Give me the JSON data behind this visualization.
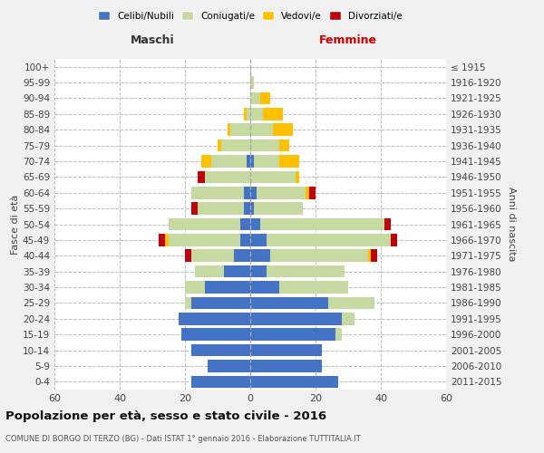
{
  "age_groups": [
    "0-4",
    "5-9",
    "10-14",
    "15-19",
    "20-24",
    "25-29",
    "30-34",
    "35-39",
    "40-44",
    "45-49",
    "50-54",
    "55-59",
    "60-64",
    "65-69",
    "70-74",
    "75-79",
    "80-84",
    "85-89",
    "90-94",
    "95-99",
    "100+"
  ],
  "birth_years": [
    "2011-2015",
    "2006-2010",
    "2001-2005",
    "1996-2000",
    "1991-1995",
    "1986-1990",
    "1981-1985",
    "1976-1980",
    "1971-1975",
    "1966-1970",
    "1961-1965",
    "1956-1960",
    "1951-1955",
    "1946-1950",
    "1941-1945",
    "1936-1940",
    "1931-1935",
    "1926-1930",
    "1921-1925",
    "1916-1920",
    "≤ 1915"
  ],
  "maschi": {
    "celibi": [
      18,
      13,
      18,
      21,
      22,
      18,
      14,
      8,
      5,
      3,
      3,
      2,
      2,
      0,
      1,
      0,
      0,
      0,
      0,
      0,
      0
    ],
    "coniugati": [
      0,
      0,
      0,
      0,
      0,
      2,
      6,
      9,
      13,
      22,
      22,
      14,
      16,
      14,
      11,
      9,
      6,
      1,
      0,
      0,
      0
    ],
    "vedovi": [
      0,
      0,
      0,
      0,
      0,
      0,
      0,
      0,
      0,
      1,
      0,
      0,
      0,
      0,
      3,
      1,
      1,
      1,
      0,
      0,
      0
    ],
    "divorziati": [
      0,
      0,
      0,
      0,
      0,
      0,
      0,
      0,
      2,
      2,
      0,
      2,
      0,
      2,
      0,
      0,
      0,
      0,
      0,
      0,
      0
    ]
  },
  "femmine": {
    "nubili": [
      27,
      22,
      22,
      26,
      28,
      24,
      9,
      5,
      6,
      5,
      3,
      1,
      2,
      0,
      1,
      0,
      0,
      0,
      0,
      0,
      0
    ],
    "coniugate": [
      0,
      0,
      0,
      2,
      4,
      14,
      21,
      24,
      30,
      38,
      38,
      15,
      15,
      14,
      8,
      9,
      7,
      4,
      3,
      1,
      0
    ],
    "vedove": [
      0,
      0,
      0,
      0,
      0,
      0,
      0,
      0,
      1,
      0,
      0,
      0,
      1,
      1,
      6,
      3,
      6,
      6,
      3,
      0,
      0
    ],
    "divorziate": [
      0,
      0,
      0,
      0,
      0,
      0,
      0,
      0,
      2,
      2,
      2,
      0,
      2,
      0,
      0,
      0,
      0,
      0,
      0,
      0,
      0
    ]
  },
  "colors": {
    "celibi_nubili": "#4472c4",
    "coniugati_e": "#c5d9a0",
    "vedovi_e": "#ffc000",
    "divorziati_e": "#c0000b"
  },
  "xlim": 60,
  "title": "Popolazione per età, sesso e stato civile - 2016",
  "subtitle": "COMUNE DI BORGO DI TERZO (BG) - Dati ISTAT 1° gennaio 2016 - Elaborazione TUTTITALIA.IT",
  "ylabel_left": "Fasce di età",
  "ylabel_right": "Anni di nascita",
  "xlabel_left": "Maschi",
  "xlabel_right": "Femmine",
  "legend_labels": [
    "Celibi/Nubili",
    "Coniugati/e",
    "Vedovi/e",
    "Divorziati/e"
  ],
  "background_color": "#f0f0f0",
  "plot_bg_color": "#ffffff"
}
